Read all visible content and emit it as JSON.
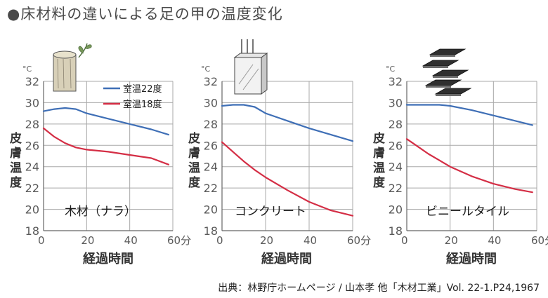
{
  "title": "●床材料の違いによる足の甲の温度変化",
  "source": "出典：林野庁ホームページ / 山本孝 他「木材工業」Vol.  22-1.P24,1967",
  "colors": {
    "series_22": "#3f6fb6",
    "series_18": "#d42e45",
    "grid": "#a8a8a8",
    "text": "#5a5a5a"
  },
  "legend": {
    "s22": "室温22度",
    "s18": "室温18度"
  },
  "chart_data": [
    {
      "type": "line",
      "panel_label": "木材（ナラ）",
      "icon": "wood-log-icon",
      "xlabel": "経過時間",
      "ylabel": "皮膚温度",
      "xunit": "分",
      "yunit": "°C",
      "xlim": [
        0,
        60
      ],
      "ylim": [
        18,
        32
      ],
      "xticks": [
        "0",
        "20",
        "40",
        "60"
      ],
      "yticks": [
        "18",
        "20",
        "22",
        "24",
        "26",
        "28",
        "30",
        "32"
      ],
      "x": [
        0,
        5,
        10,
        15,
        20,
        30,
        40,
        50,
        58
      ],
      "series": [
        {
          "name": "室温22度",
          "values": [
            29.2,
            29.4,
            29.5,
            29.4,
            29.0,
            28.5,
            28.0,
            27.5,
            27.0
          ]
        },
        {
          "name": "室温18度",
          "values": [
            27.6,
            26.8,
            26.2,
            25.8,
            25.6,
            25.4,
            25.1,
            24.8,
            24.2
          ]
        }
      ]
    },
    {
      "type": "line",
      "panel_label": "コンクリート",
      "icon": "concrete-block-icon",
      "xlabel": "経過時間",
      "ylabel": "皮膚温度",
      "xunit": "分",
      "yunit": "°C",
      "xlim": [
        0,
        60
      ],
      "ylim": [
        18,
        32
      ],
      "xticks": [
        "0",
        "20",
        "40",
        "60"
      ],
      "yticks": [
        "18",
        "20",
        "22",
        "24",
        "26",
        "28",
        "30",
        "32"
      ],
      "x": [
        0,
        5,
        10,
        15,
        20,
        30,
        40,
        50,
        60
      ],
      "series": [
        {
          "name": "室温22度",
          "values": [
            29.7,
            29.8,
            29.8,
            29.6,
            29.0,
            28.3,
            27.6,
            27.0,
            26.4
          ]
        },
        {
          "name": "室温18度",
          "values": [
            26.3,
            25.4,
            24.5,
            23.7,
            23.0,
            21.8,
            20.7,
            19.9,
            19.4
          ]
        }
      ]
    },
    {
      "type": "line",
      "panel_label": "ビニールタイル",
      "icon": "vinyl-tile-stack-icon",
      "xlabel": "経過時間",
      "ylabel": "皮膚温度",
      "xunit": "分",
      "yunit": "°C",
      "xlim": [
        0,
        60
      ],
      "ylim": [
        18,
        32
      ],
      "xticks": [
        "0",
        "20",
        "40",
        "60"
      ],
      "yticks": [
        "18",
        "20",
        "22",
        "24",
        "26",
        "28",
        "30",
        "32"
      ],
      "x": [
        0,
        5,
        10,
        15,
        20,
        30,
        40,
        50,
        58
      ],
      "series": [
        {
          "name": "室温22度",
          "values": [
            29.8,
            29.8,
            29.8,
            29.8,
            29.7,
            29.3,
            28.8,
            28.3,
            27.9
          ]
        },
        {
          "name": "室温18度",
          "values": [
            26.6,
            25.9,
            25.2,
            24.6,
            24.0,
            23.1,
            22.4,
            21.9,
            21.6
          ]
        }
      ]
    }
  ]
}
